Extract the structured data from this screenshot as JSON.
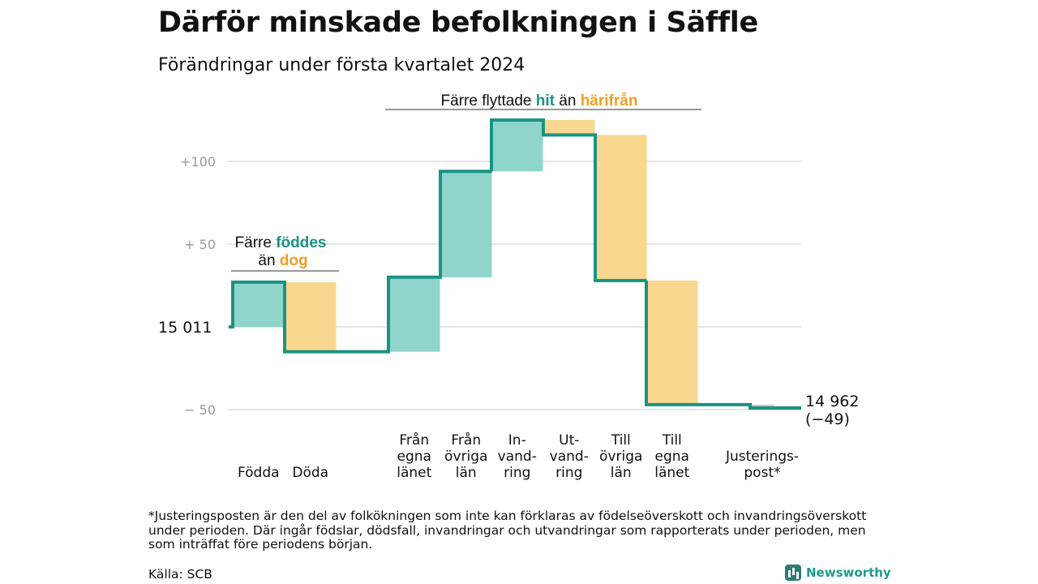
{
  "header": {
    "title": "Därför minskade befolkningen i Säffle",
    "subtitle": "Förändringar under första kvartalet 2024"
  },
  "footer": {
    "footnote": "*Justeringsposten är den del av folkökningen som inte kan förklaras av födelseöverskott och invandringsöverskott under perioden. Där ingår födslar, dödsfall, invandringar och utvandringar som rapporterats under perioden, men som inträffat före periodens början.",
    "source": "Källa: SCB",
    "brand": "Newsworthy"
  },
  "colors": {
    "line": "#1a9383",
    "increase": "#8fd5cb",
    "decrease": "#fad78e",
    "adjustment": "#c8c8c8",
    "accent_hit": "#1a9383",
    "accent_harifran": "#f0a020",
    "grid": "#dddddd",
    "axis_text": "#999999"
  },
  "chart_data": {
    "type": "waterfall",
    "start_value": 15011,
    "start_label": "15  011",
    "end_value": 14962,
    "end_labels": [
      "14 962",
      "(−49)"
    ],
    "categories": [
      {
        "label": [
          "Födda"
        ],
        "value": 27
      },
      {
        "label": [
          "Döda"
        ],
        "value": -42
      },
      {
        "label": [
          ""
        ],
        "value": 0
      },
      {
        "label": [
          "Från",
          "egna",
          "länet"
        ],
        "value": 45
      },
      {
        "label": [
          "Från",
          "övriga",
          "län"
        ],
        "value": 64
      },
      {
        "label": [
          "In-",
          "vand-",
          "ring"
        ],
        "value": 31
      },
      {
        "label": [
          "Ut-",
          "vand-",
          "ring"
        ],
        "value": -9
      },
      {
        "label": [
          "Till",
          "övriga",
          "län"
        ],
        "value": -88
      },
      {
        "label": [
          "Till",
          "egna",
          "länet"
        ],
        "value": -75
      },
      {
        "label": [
          ""
        ],
        "value": 0
      },
      {
        "label": [
          "Justerings-",
          "post*"
        ],
        "value": -2
      }
    ],
    "y_ticks": [
      {
        "value": 100,
        "label": "+100"
      },
      {
        "value": 50,
        "label": "+  50"
      },
      {
        "value": -50,
        "label": "−  50"
      }
    ],
    "ylim": [
      -50,
      125
    ],
    "annotations": {
      "births": {
        "line1": "Färre ",
        "line1_hl": "föddes",
        "line2": "än ",
        "line2_hl": "dog"
      },
      "migration": {
        "text1": "Färre flyttade ",
        "hl1": "hit",
        "text2": " än ",
        "hl2": "härifrån"
      }
    }
  }
}
